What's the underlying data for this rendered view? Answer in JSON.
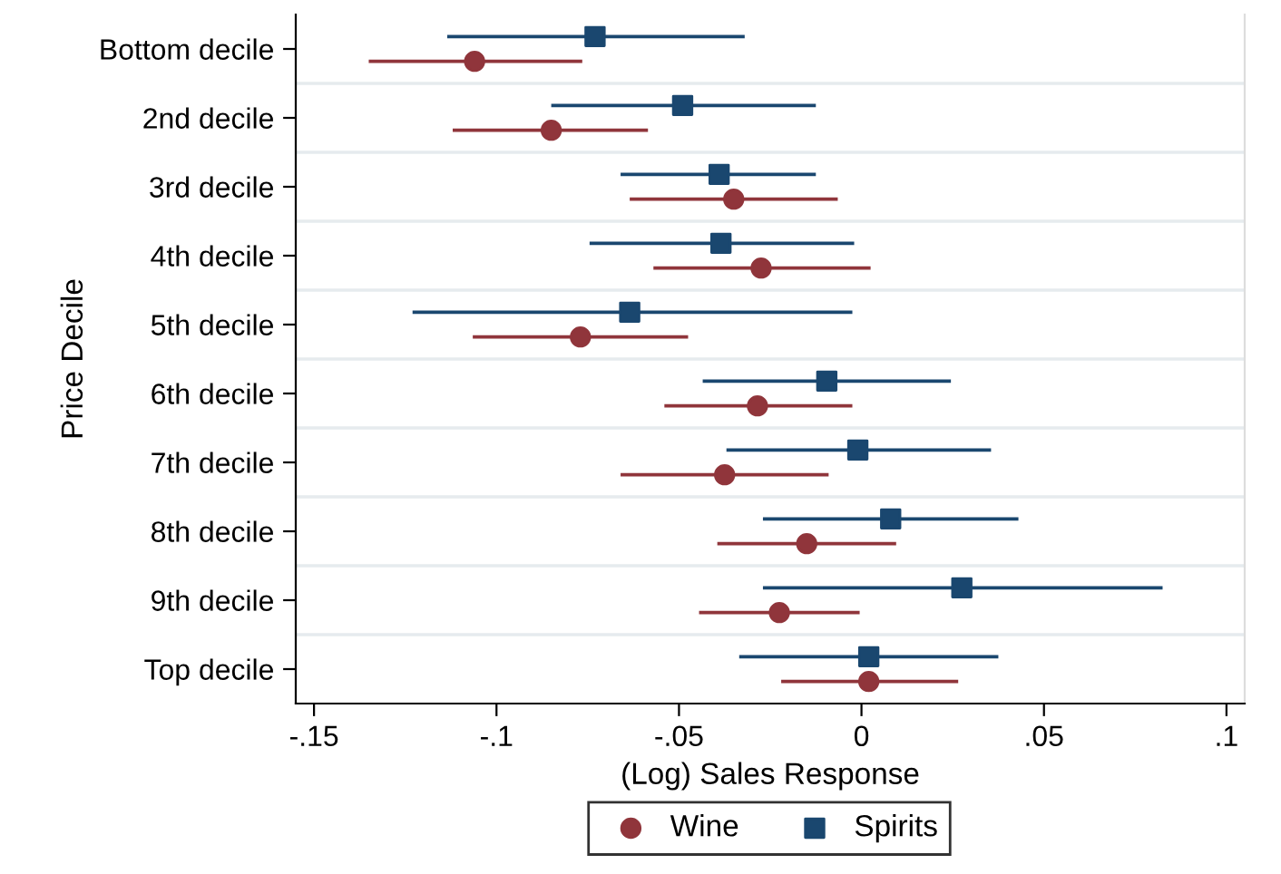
{
  "chart_data": {
    "type": "scatter",
    "orientation": "horizontal",
    "xlabel": "(Log) Sales Response",
    "ylabel": "Price Decile",
    "categories": [
      "Bottom decile",
      "2nd decile",
      "3rd decile",
      "4th decile",
      "5th decile",
      "6th decile",
      "7th decile",
      "8th decile",
      "9th decile",
      "Top decile"
    ],
    "series": [
      {
        "name": "Wine",
        "color": "#90353b",
        "marker": "circle",
        "values": [
          -0.106,
          -0.085,
          -0.035,
          -0.0275,
          -0.077,
          -0.0285,
          -0.0375,
          -0.015,
          -0.0225,
          0.002
        ],
        "errors": [
          [
            -0.135,
            -0.0765
          ],
          [
            -0.112,
            -0.0585
          ],
          [
            -0.0635,
            -0.0065
          ],
          [
            -0.057,
            0.0025
          ],
          [
            -0.1065,
            -0.0475
          ],
          [
            -0.054,
            -0.0025
          ],
          [
            -0.066,
            -0.009
          ],
          [
            -0.0395,
            0.0095
          ],
          [
            -0.0445,
            -0.0005
          ],
          [
            -0.022,
            0.0265
          ]
        ]
      },
      {
        "name": "Spirits",
        "color": "#1a476f",
        "marker": "square",
        "values": [
          -0.073,
          -0.049,
          -0.039,
          -0.0385,
          -0.0635,
          -0.0095,
          -0.001,
          0.008,
          0.0275,
          0.002
        ],
        "errors": [
          [
            -0.1135,
            -0.032
          ],
          [
            -0.085,
            -0.0125
          ],
          [
            -0.066,
            -0.0125
          ],
          [
            -0.0745,
            -0.002
          ],
          [
            -0.123,
            -0.0025
          ],
          [
            -0.0435,
            0.0245
          ],
          [
            -0.037,
            0.0355
          ],
          [
            -0.027,
            0.043
          ],
          [
            -0.027,
            0.0825
          ],
          [
            -0.0335,
            0.0375
          ]
        ]
      }
    ],
    "xlim": [
      -0.155,
      0.105
    ],
    "xticks": [
      {
        "value": -0.15,
        "label": "-.15"
      },
      {
        "value": -0.1,
        "label": "-.1"
      },
      {
        "value": -0.05,
        "label": "-.05"
      },
      {
        "value": 0,
        "label": "0"
      },
      {
        "value": 0.05,
        "label": ".05"
      },
      {
        "value": 0.1,
        "label": ".1"
      }
    ],
    "grid": "y",
    "legend": "bottom"
  }
}
